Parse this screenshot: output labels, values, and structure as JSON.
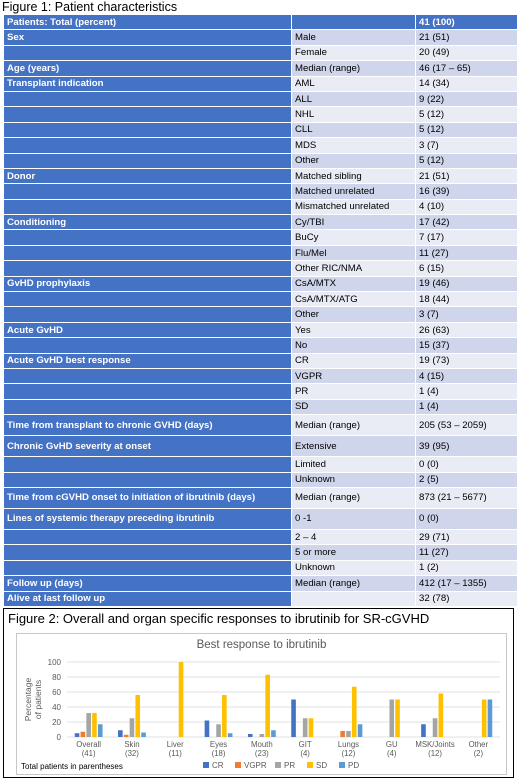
{
  "figure1": {
    "title": "Figure 1: Patient characteristics",
    "header": {
      "label": "Patients: Total (percent)",
      "category": "",
      "value": "41 (100)"
    },
    "rows": [
      {
        "label": "Sex",
        "category": "Male",
        "value": "21 (51)"
      },
      {
        "label": "",
        "category": "Female",
        "value": "20 (49)"
      },
      {
        "label": "Age (years)",
        "category": "Median (range)",
        "value": "46 (17 – 65)"
      },
      {
        "label": "Transplant indication",
        "category": "AML",
        "value": "14 (34)"
      },
      {
        "label": "",
        "category": "ALL",
        "value": "9 (22)"
      },
      {
        "label": "",
        "category": "NHL",
        "value": "5 (12)"
      },
      {
        "label": "",
        "category": "CLL",
        "value": "5 (12)"
      },
      {
        "label": "",
        "category": "MDS",
        "value": "3 (7)"
      },
      {
        "label": "",
        "category": "Other",
        "value": "5 (12)"
      },
      {
        "label": "Donor",
        "category": "Matched sibling",
        "value": "21 (51)"
      },
      {
        "label": "",
        "category": "Matched unrelated",
        "value": "16 (39)"
      },
      {
        "label": "",
        "category": "Mismatched unrelated",
        "value": "4 (10)"
      },
      {
        "label": "Conditioning",
        "category": "Cy/TBI",
        "value": "17 (42)"
      },
      {
        "label": "",
        "category": "BuCy",
        "value": "7 (17)"
      },
      {
        "label": "",
        "category": "Flu/Mel",
        "value": "11 (27)"
      },
      {
        "label": "",
        "category": "Other RIC/NMA",
        "value": "6 (15)"
      },
      {
        "label": "GvHD prophylaxis",
        "category": "CsA/MTX",
        "value": "19 (46)"
      },
      {
        "label": "",
        "category": "CsA/MTX/ATG",
        "value": "18 (44)"
      },
      {
        "label": "",
        "category": "Other",
        "value": "3 (7)"
      },
      {
        "label": "Acute GvHD",
        "category": "Yes",
        "value": "26 (63)"
      },
      {
        "label": "",
        "category": "No",
        "value": "15 (37)"
      },
      {
        "label": "Acute GvHD best response",
        "category": "CR",
        "value": "19 (73)"
      },
      {
        "label": "",
        "category": "VGPR",
        "value": "4 (15)"
      },
      {
        "label": "",
        "category": "PR",
        "value": "1 (4)"
      },
      {
        "label": "",
        "category": "SD",
        "value": "1 (4)"
      },
      {
        "label": "Time from transplant to chronic GVHD (days)",
        "category": "Median (range)",
        "value": "205 (53 – 2059)",
        "tall": true
      },
      {
        "label": "Chronic GvHD severity at onset",
        "category": "Extensive",
        "value": "39 (95)",
        "tall": true
      },
      {
        "label": "",
        "category": "Limited",
        "value": "0 (0)"
      },
      {
        "label": "",
        "category": "Unknown",
        "value": "2 (5)"
      },
      {
        "label": "Time from cGVHD onset to initiation of ibrutinib (days)",
        "category": "Median (range)",
        "value": "873 (21 – 5677)",
        "tall": true
      },
      {
        "label": "Lines of systemic therapy preceding ibrutinib",
        "category": "0 -1",
        "value": "0 (0)",
        "tall": true
      },
      {
        "label": "",
        "category": "2 – 4",
        "value": "29 (71)"
      },
      {
        "label": "",
        "category": "5 or more",
        "value": "11 (27)"
      },
      {
        "label": "",
        "category": "Unknown",
        "value": "1 (2)"
      },
      {
        "label": "Follow up (days)",
        "category": "Median (range)",
        "value": "412 (17 – 1355)"
      },
      {
        "label": "Alive at last follow up",
        "category": "",
        "value": "32 (78)"
      }
    ]
  },
  "figure2": {
    "title": "Figure 2: Overall and organ specific responses to ibrutinib for SR-cGVHD",
    "footnote": "Total patients in parentheses"
  },
  "chart_data": {
    "type": "bar",
    "title": "Best response to ibrutinib",
    "ylabel": "Percentage of patients",
    "ylim": [
      0,
      100
    ],
    "yticks": [
      0,
      20,
      40,
      60,
      80,
      100
    ],
    "grid": true,
    "legend_position": "bottom",
    "categories": [
      "Overall",
      "Skin",
      "Liver",
      "Eyes",
      "Mouth",
      "GIT",
      "Lungs",
      "GU",
      "MSK/Joints",
      "Other"
    ],
    "category_counts": [
      "(41)",
      "(32)",
      "(11)",
      "(18)",
      "(23)",
      "(4)",
      "(12)",
      "(4)",
      "(12)",
      "(2)"
    ],
    "series": [
      {
        "name": "CR",
        "color": "#4472c4",
        "values": [
          5,
          9,
          0,
          22,
          4,
          50,
          0,
          0,
          17,
          0
        ]
      },
      {
        "name": "VGPR",
        "color": "#ed7d31",
        "values": [
          7,
          3,
          0,
          0,
          0,
          0,
          8,
          0,
          0,
          0
        ]
      },
      {
        "name": "PR",
        "color": "#a5a5a5",
        "values": [
          32,
          25,
          0,
          17,
          4,
          25,
          8,
          50,
          25,
          0
        ]
      },
      {
        "name": "SD",
        "color": "#ffc000",
        "values": [
          32,
          56,
          100,
          56,
          83,
          25,
          67,
          50,
          58,
          50
        ]
      },
      {
        "name": "PD",
        "color": "#5b9bd5",
        "values": [
          17,
          6,
          0,
          5,
          9,
          0,
          17,
          0,
          0,
          50
        ]
      }
    ]
  }
}
